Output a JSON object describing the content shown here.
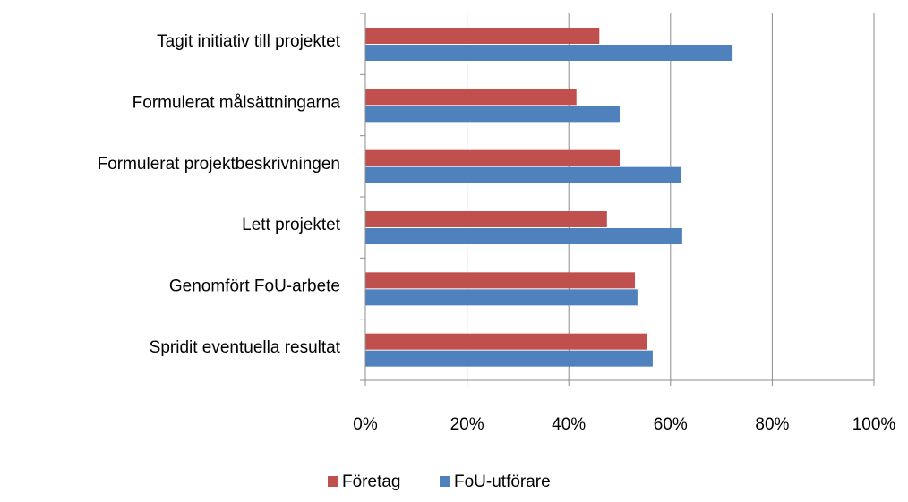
{
  "chart_data": {
    "type": "hbar",
    "categories": [
      "Tagit initiativ till projektet",
      "Formulerat målsättningarna",
      "Formulerat projektbeskrivningen",
      "Lett projektet",
      "Genomfört FoU-arbete",
      "Spridit eventuella resultat"
    ],
    "series": [
      {
        "name": "Företag",
        "color": "#c0504d",
        "values": [
          46,
          41.5,
          50,
          47.5,
          53,
          55.3
        ]
      },
      {
        "name": "FoU-utförare",
        "color": "#4f81bd",
        "values": [
          72.2,
          50,
          62,
          62.3,
          53.5,
          56.5
        ]
      }
    ],
    "xlim": [
      0,
      100
    ],
    "xticks": [
      {
        "value": 0,
        "label": "0%"
      },
      {
        "value": 20,
        "label": "20%"
      },
      {
        "value": 40,
        "label": "40%"
      },
      {
        "value": 60,
        "label": "60%"
      },
      {
        "value": 80,
        "label": "80%"
      },
      {
        "value": 100,
        "label": "100%"
      }
    ],
    "grid": true,
    "legend": "bottom"
  }
}
